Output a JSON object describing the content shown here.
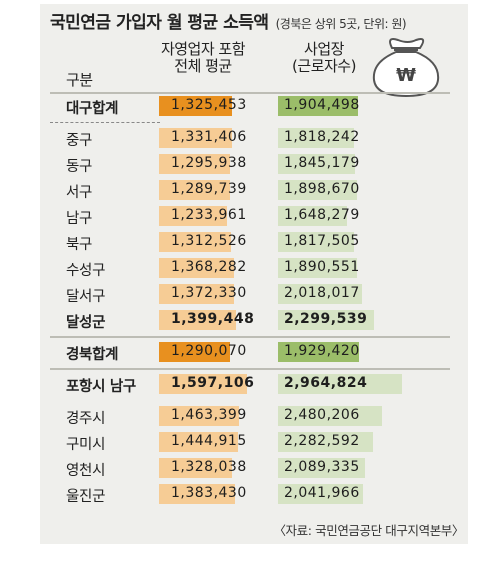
{
  "chart_data": {
    "type": "bar",
    "title": "국민연금 가입자 월 평균 소득액",
    "subtitle": "(경북은 상위 5곳, 단위: 원)",
    "row_header": "구분",
    "categories": [
      "대구합계",
      "중구",
      "동구",
      "서구",
      "남구",
      "북구",
      "수성구",
      "달서구",
      "달성군",
      "경북합계",
      "포항시 남구",
      "경주시",
      "구미시",
      "영천시",
      "울진군"
    ],
    "series": [
      {
        "name": "자영업자 포함 전체 평균",
        "values": [
          1325453,
          1331406,
          1295938,
          1289739,
          1233961,
          1312526,
          1368282,
          1372330,
          1399448,
          1290070,
          1597106,
          1463399,
          1444915,
          1328038,
          1383430
        ],
        "labels": [
          "1,325,453",
          "1,331,406",
          "1,295,938",
          "1,289,739",
          "1,233,961",
          "1,312,526",
          "1,368,282",
          "1,372,330",
          "1,399,448",
          "1,290,070",
          "1,597,106",
          "1,463,399",
          "1,444,915",
          "1,328,038",
          "1,383,430"
        ],
        "color": "#f6cc95",
        "highlight_color": "#e8901f"
      },
      {
        "name": "사업장 (근로자수)",
        "values": [
          1904498,
          1818242,
          1845179,
          1898670,
          1648279,
          1817505,
          1890551,
          2018017,
          2299539,
          1929420,
          2964824,
          2480206,
          2282592,
          2089335,
          2041966
        ],
        "labels": [
          "1,904,498",
          "1,818,242",
          "1,845,179",
          "1,898,670",
          "1,648,279",
          "1,817,505",
          "1,890,551",
          "2,018,017",
          "2,299,539",
          "1,929,420",
          "2,964,824",
          "2,480,206",
          "2,282,592",
          "2,089,335",
          "2,041,966"
        ],
        "color": "#d6e3c4",
        "highlight_color": "#9bbd69"
      }
    ],
    "col1_header": [
      "자영업자 포함",
      "전체 평균"
    ],
    "col2_header": [
      "사업장",
      "(근로자수)"
    ],
    "highlight_rows": [
      0,
      9
    ],
    "bold_rows": [
      8,
      10
    ],
    "source": "〈자료: 국민연금공단 대구지역본부〉",
    "icon": "money-bag-won-icon",
    "icon_symbol": "₩"
  }
}
